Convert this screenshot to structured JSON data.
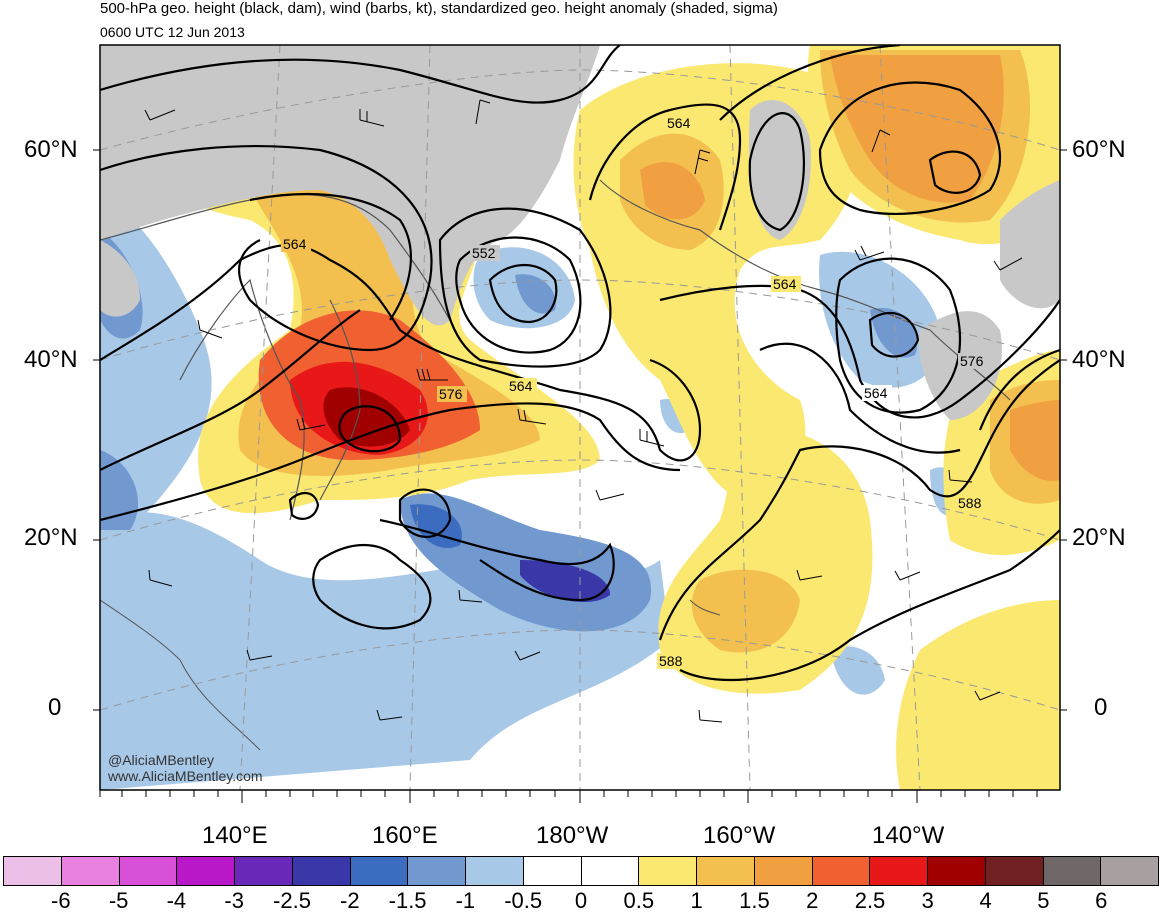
{
  "header": {
    "title": "500-hPa geo. height (black, dam), wind (barbs, kt), standardized geo. height anomaly (shaded, sigma)",
    "subtitle": "0600 UTC 12 Jun 2013"
  },
  "axes": {
    "lat_left": [
      "60°N",
      "40°N",
      "20°N",
      "0"
    ],
    "lat_right": [
      "60°N",
      "40°N",
      "20°N",
      "0"
    ],
    "lon_bottom": [
      "140°E",
      "160°E",
      "180°W",
      "160°W",
      "140°W"
    ]
  },
  "contour_labels": [
    "564",
    "552",
    "564",
    "576",
    "564",
    "564",
    "564",
    "576",
    "588",
    "588"
  ],
  "watermark": {
    "handle": "@AliciaMBentley",
    "site": "www.AliciaMBentley.com"
  },
  "colorbar": {
    "colors": [
      "#ecbfe8",
      "#e880e0",
      "#d850d8",
      "#b818c8",
      "#6a28b8",
      "#3a38a8",
      "#3b6cc0",
      "#7199d0",
      "#a8c8e8",
      "#ffffff",
      "#ffffff",
      "#fbe870",
      "#f3c050",
      "#f0a040",
      "#f06030",
      "#e81818",
      "#a00000",
      "#702020",
      "#706868",
      "#a8a0a0"
    ],
    "ticks": [
      "-6",
      "-5",
      "-4",
      "-3",
      "-2.5",
      "-2",
      "-1.5",
      "-1",
      "-0.5",
      "0",
      "0.5",
      "1",
      "1.5",
      "2",
      "2.5",
      "3",
      "4",
      "5",
      "6"
    ]
  },
  "legend_colors": {
    "land_gray": "#c8c8c8",
    "coast": "#555555",
    "contour": "#000000"
  }
}
